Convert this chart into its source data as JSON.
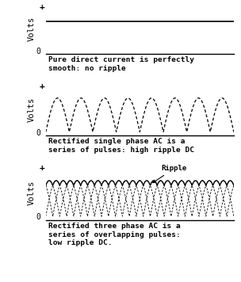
{
  "bg_color": "#ffffff",
  "line_color": "#000000",
  "font_family": "monospace",
  "title_fontsize": 6.8,
  "label_fontsize": 7.5,
  "plus_fontsize": 8,
  "zero_fontsize": 7,
  "panel1": {
    "title": "Pure direct current is perfectly\nsmooth: no ripple",
    "ylabel": "Volts",
    "dc_level": 0.72
  },
  "panel2": {
    "title": "Rectified single phase AC is a\nseries of pulses: high ripple DC",
    "ylabel": "Volts",
    "num_pulses": 8,
    "amplitude": 0.8
  },
  "panel3": {
    "title": "Rectified three phase AC is a\nseries of overlapping pulses:\nlow ripple DC.",
    "ylabel": "Volts",
    "ripple_label": "Ripple",
    "num_pulses_per_phase": 9,
    "amplitude": 0.8
  },
  "dash_on": 3,
  "dash_off": 2
}
